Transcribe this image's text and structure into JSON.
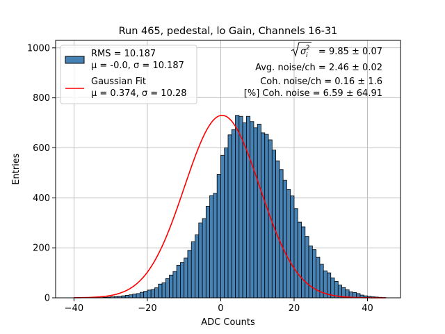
{
  "chart_data": {
    "type": "bar",
    "title": "Run 465, pedestal, lo Gain, Channels 16-31",
    "xlabel": "ADC Counts",
    "ylabel": "Entries",
    "xlim": [
      -45,
      49
    ],
    "ylim": [
      0,
      1030
    ],
    "xticks": [
      -40,
      -20,
      0,
      20,
      40
    ],
    "yticks": [
      0,
      200,
      400,
      600,
      800,
      1000
    ],
    "grid": true,
    "legend_position": "top-left",
    "bin_width": 1,
    "colors": {
      "bars": "#4682b4",
      "bar_edge": "#000000",
      "fit": "#ff0000",
      "grid": "#b0b0b0"
    },
    "histogram": {
      "name": "RMS = 10.187",
      "name_line2": "μ = -0.0, σ = 10.187",
      "bin_edges_start": -40,
      "bin_edges_end": 45,
      "counts": [
        1,
        0,
        1,
        1,
        1,
        0,
        1,
        1,
        2,
        3,
        4,
        5,
        6,
        8,
        10,
        12,
        15,
        17,
        22,
        26,
        31,
        33,
        40,
        55,
        60,
        77,
        91,
        105,
        130,
        141,
        159,
        190,
        224,
        252,
        300,
        317,
        366,
        409,
        418,
        494,
        570,
        600,
        652,
        673,
        730,
        726,
        700,
        726,
        705,
        680,
        695,
        660,
        654,
        632,
        591,
        548,
        513,
        470,
        433,
        408,
        357,
        303,
        284,
        246,
        208,
        193,
        163,
        135,
        108,
        100,
        80,
        66,
        51,
        41,
        32,
        24,
        21,
        17,
        11,
        8,
        6,
        4,
        3,
        2,
        1
      ]
    },
    "fit": {
      "name": "Gaussian Fit",
      "name_line2": "μ = 0.374, σ = 10.28",
      "mu": 0.374,
      "sigma": 10.28,
      "amplitude": 730,
      "x_range": [
        -40,
        45
      ]
    },
    "annotations": {
      "line1_value": "= 9.85 ± 0.07",
      "line2": "Avg. noise/ch = 2.46 ± 0.02",
      "line3": "Coh. noise/ch = 0.16 ± 1.6",
      "line4": "[%] Coh. noise = 6.59 ± 64.91"
    }
  }
}
